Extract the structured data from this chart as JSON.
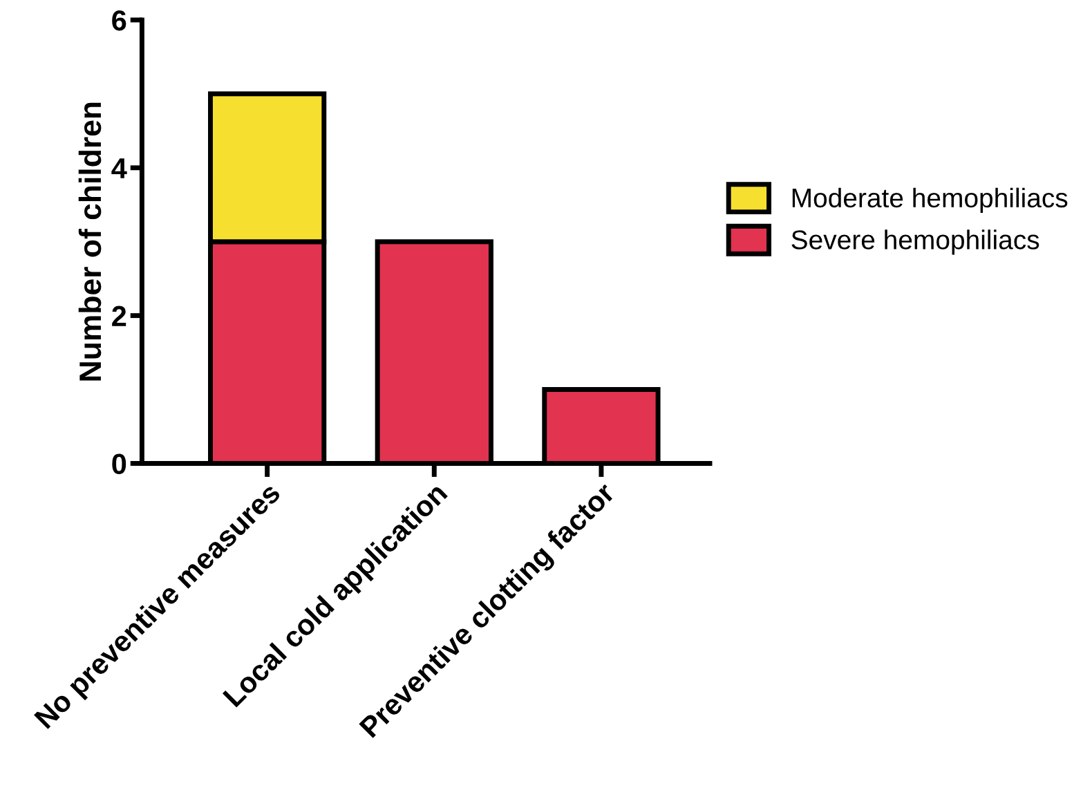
{
  "chart_data": {
    "type": "bar",
    "stacked": true,
    "ylabel": "Number of children",
    "categories": [
      "No preventive measures",
      "Local cold application",
      "Preventive clotting factor"
    ],
    "series": [
      {
        "name": "Severe hemophiliacs",
        "color": "#e23350",
        "values": [
          3,
          3,
          1
        ]
      },
      {
        "name": "Moderate hemophiliacs",
        "color": "#f7df30",
        "values": [
          2,
          0,
          0
        ]
      }
    ],
    "ylim": [
      0,
      6
    ],
    "yticks": [
      0,
      2,
      4,
      6
    ],
    "grid": false,
    "legend": "right"
  }
}
